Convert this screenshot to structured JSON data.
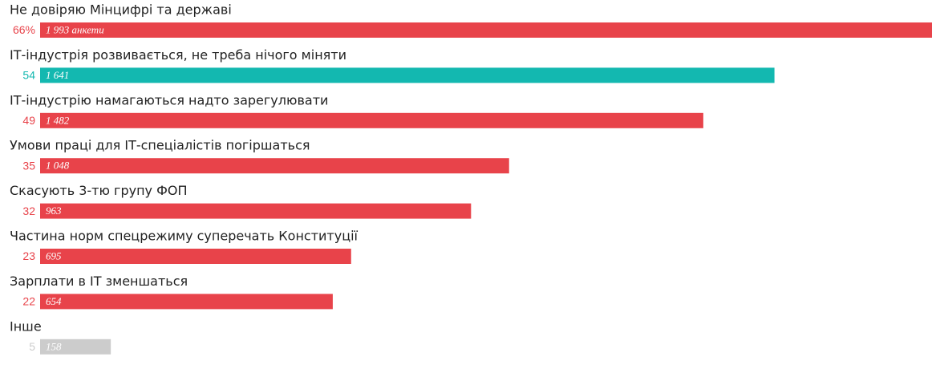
{
  "chart_data": {
    "type": "bar",
    "orientation": "horizontal",
    "categories": [
      "Не довіряю Мінцифрі та державі",
      "ІТ-індустрія розвивається, не треба нічого міняти",
      "ІТ-індустрію намагаються надто зарегулювати",
      "Умови праці для ІТ-спеціалістів погіршаться",
      "Скасують 3-тю групу ФОП",
      "Частина норм спецрежиму суперечать Конституції",
      "Зарплати в ІТ зменшаться",
      "Інше"
    ],
    "values": [
      1993,
      1641,
      1482,
      1048,
      963,
      695,
      654,
      158
    ],
    "value_labels": [
      "1 993 анкети",
      "1 641",
      "1 482",
      "1 048",
      "963",
      "695",
      "654",
      "158"
    ],
    "shares": [
      66,
      54,
      49,
      35,
      32,
      23,
      22,
      5
    ],
    "share_labels": [
      "66%",
      "54",
      "49",
      "35",
      "32",
      "23",
      "22",
      "5"
    ],
    "colors": [
      "#e8434a",
      "#13b8b0",
      "#e8434a",
      "#e8434a",
      "#e8434a",
      "#e8434a",
      "#e8434a",
      "#cccccc"
    ]
  }
}
